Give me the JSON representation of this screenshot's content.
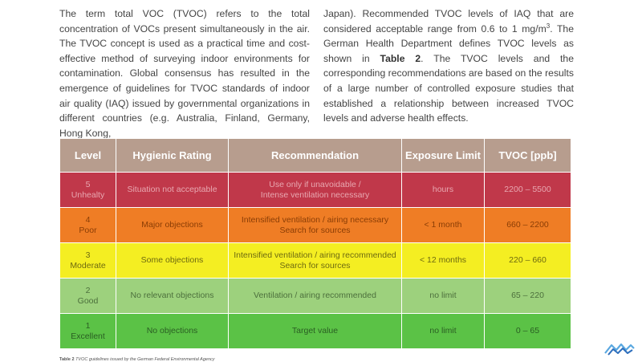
{
  "text": {
    "left": "The term total VOC (TVOC) refers to the total concentration of VOCs present simultaneously in the air. The TVOC concept is used as a practical time and cost-effective method of surveying indoor environments for contamination. Global consensus has resulted in the emergence of guidelines for TVOC standards of indoor air quality (IAQ) issued by governmental organizations in different countries (e.g. Australia, Finland, Germany, Hong Kong,",
    "right_p1": "Japan). Recommended TVOC levels of IAQ that are considered acceptable range from 0.6 to 1 mg/m",
    "right_sup": "3",
    "right_p2": ". The German Health Department defines TVOC levels as shown in ",
    "right_bold": "Table 2",
    "right_p3": ". The TVOC levels and the corresponding recommendations are based on the results of a large number of controlled exposure studies that established a relationship between increased TVOC levels and adverse health effects."
  },
  "table": {
    "headers": [
      "Level",
      "Hygienic Rating",
      "Recommendation",
      "Exposure Limit",
      "TVOC [ppb]"
    ],
    "rows": [
      {
        "level_num": "5",
        "level_name": "Unhealty",
        "rating": "Situation not acceptable",
        "rec_line1": "Use only if unavoidable /",
        "rec_line2": "Intense ventilation necessary",
        "limit": "hours",
        "tvoc": "2200 – 5500",
        "color": "#c0384a"
      },
      {
        "level_num": "4",
        "level_name": "Poor",
        "rating": "Major objections",
        "rec_line1": "Intensified ventilation / airing necessary",
        "rec_line2": "Search for sources",
        "limit": "< 1 month",
        "tvoc": "660 – 2200",
        "color": "#ef7d25"
      },
      {
        "level_num": "3",
        "level_name": "Moderate",
        "rating": "Some objections",
        "rec_line1": "Intensified ventilation / airing recommended",
        "rec_line2": "Search for sources",
        "limit": "< 12 months",
        "tvoc": "220 – 660",
        "color": "#f4ee22"
      },
      {
        "level_num": "2",
        "level_name": "Good",
        "rating": "No relevant objections",
        "rec_line1": "Ventilation / airing recommended",
        "rec_line2": "",
        "limit": "no limit",
        "tvoc": "65 – 220",
        "color": "#9dd17d"
      },
      {
        "level_num": "1",
        "level_name": "Excellent",
        "rating": "No objections",
        "rec_line1": "Target value",
        "rec_line2": "",
        "limit": "no limit",
        "tvoc": "0 – 65",
        "color": "#5bc246"
      }
    ],
    "header_color": "#b79d8e"
  },
  "caption": {
    "label": "Table 2",
    "text": " TVOC guidelines issued by the German Federal Environmental Agency"
  },
  "logo": {
    "icon": "wave-logo-icon",
    "colors": [
      "#5aa8e0",
      "#2e6fbd"
    ]
  }
}
